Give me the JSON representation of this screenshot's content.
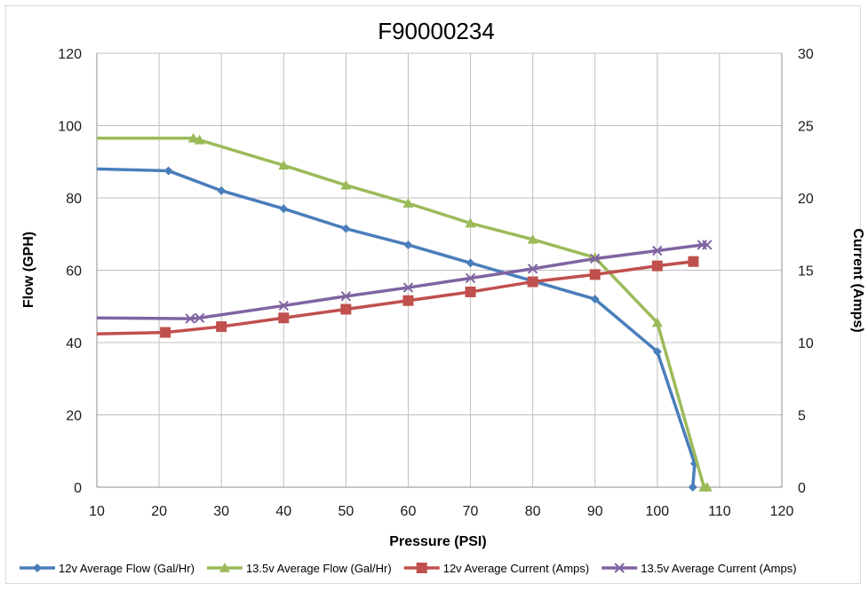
{
  "chart_data": {
    "type": "line",
    "title": "F90000234",
    "xlabel": "Pressure (PSI)",
    "ylabel": "Flow (GPH)",
    "y2label": "Current (Amps)",
    "xlim": [
      10,
      120
    ],
    "ylim": [
      0,
      120
    ],
    "y2lim": [
      0,
      30
    ],
    "x_ticks": [
      10,
      20,
      30,
      40,
      50,
      60,
      70,
      80,
      90,
      100,
      110,
      120
    ],
    "y_ticks": [
      0,
      20,
      40,
      60,
      80,
      100,
      120
    ],
    "y2_ticks": [
      0,
      5,
      10,
      15,
      20,
      25,
      30
    ],
    "grid": true,
    "legend_position": "bottom",
    "series": [
      {
        "name": "12v Average Flow (Gal/Hr)",
        "axis": "left",
        "color": "#4a7ebb",
        "marker": "diamond",
        "points": [
          [
            10,
            88
          ],
          [
            21.5,
            87.5
          ],
          [
            30,
            82
          ],
          [
            40,
            77
          ],
          [
            50,
            71.5
          ],
          [
            60,
            67
          ],
          [
            70,
            62
          ],
          [
            80,
            57
          ],
          [
            90,
            52
          ],
          [
            100,
            37.5
          ],
          [
            106,
            6.5
          ],
          [
            105.7,
            0
          ]
        ]
      },
      {
        "name": "13.5v Average Flow (Gal/Hr)",
        "axis": "left",
        "color": "#9bbb59",
        "marker": "triangle",
        "points": [
          [
            10,
            96.5
          ],
          [
            25.5,
            96.5
          ],
          [
            26.5,
            96
          ],
          [
            40,
            89
          ],
          [
            50,
            83.5
          ],
          [
            60,
            78.5
          ],
          [
            70,
            73
          ],
          [
            80,
            68.5
          ],
          [
            90,
            63.5
          ],
          [
            100,
            45.5
          ],
          [
            107.5,
            0
          ],
          [
            108,
            0
          ]
        ]
      },
      {
        "name": "12v Average Current (Amps)",
        "axis": "right",
        "color": "#c0504d",
        "marker": "square",
        "points": [
          [
            10,
            10.6
          ],
          [
            21,
            10.7
          ],
          [
            30,
            11.1
          ],
          [
            40,
            11.7
          ],
          [
            50,
            12.3
          ],
          [
            60,
            12.9
          ],
          [
            70,
            13.5
          ],
          [
            80,
            14.2
          ],
          [
            90,
            14.7
          ],
          [
            100,
            15.3
          ],
          [
            105.8,
            15.6
          ]
        ]
      },
      {
        "name": "13.5v Average Current (Amps)",
        "axis": "right",
        "color": "#8064a2",
        "marker": "x",
        "points": [
          [
            10,
            11.7
          ],
          [
            25,
            11.65
          ],
          [
            26.5,
            11.7
          ],
          [
            40,
            12.55
          ],
          [
            50,
            13.2
          ],
          [
            60,
            13.8
          ],
          [
            70,
            14.45
          ],
          [
            80,
            15.1
          ],
          [
            90,
            15.8
          ],
          [
            100,
            16.35
          ],
          [
            107.2,
            16.75
          ],
          [
            108,
            16.75
          ]
        ]
      }
    ]
  }
}
